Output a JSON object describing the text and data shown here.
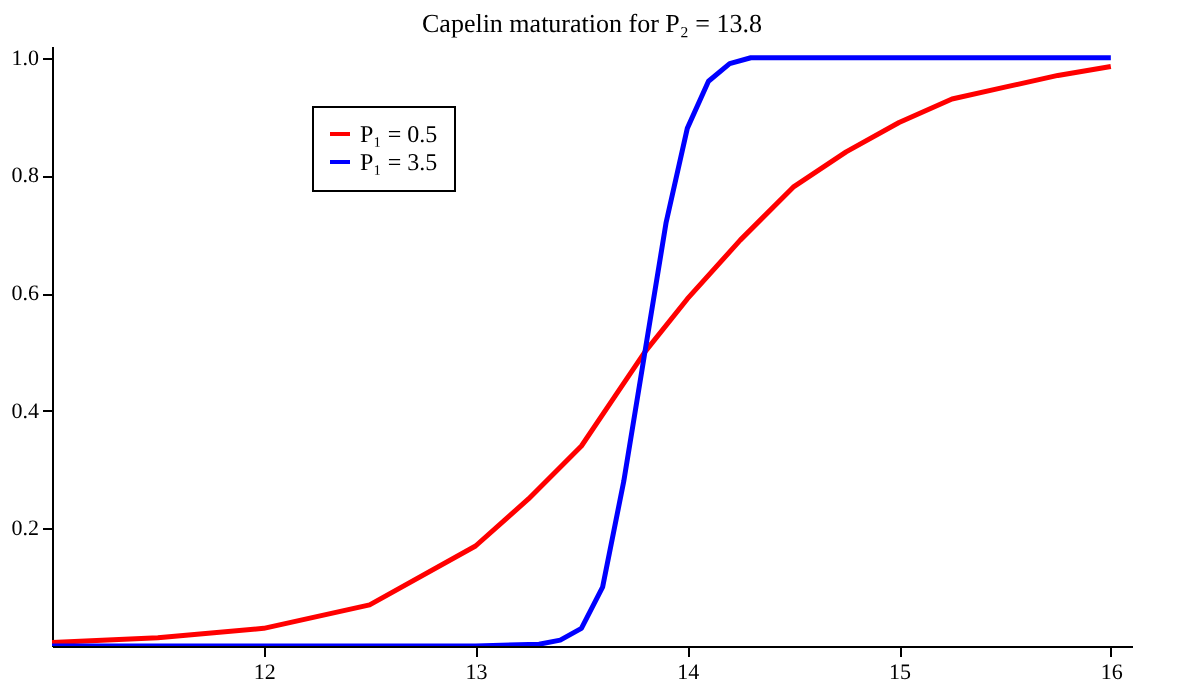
{
  "chart_data": {
    "type": "line",
    "title": "Capelin maturation for P₂ = 13.8",
    "xlim": [
      11,
      16.1
    ],
    "xticks": [
      12,
      13,
      14,
      15,
      16
    ],
    "ylim": [
      0,
      1.02
    ],
    "yticks": [
      {
        "value": 0.2,
        "label": "0.2"
      },
      {
        "value": 0.4,
        "label": "0.4"
      },
      {
        "value": 0.6,
        "label": "0.6"
      },
      {
        "value": 0.8,
        "label": "0.8"
      },
      {
        "value": 1,
        "label": "1.0"
      }
    ],
    "grid": false,
    "legend": "top left",
    "marker": "none",
    "line_style": "solid",
    "series": [
      {
        "name": "P₁ = 0.5",
        "color": "#ff0000",
        "x": [
          11,
          11.5,
          12,
          12.5,
          13,
          13.25,
          13.5,
          13.65,
          13.8,
          14,
          14.25,
          14.5,
          14.75,
          15,
          15.25,
          15.5,
          15.75,
          16
        ],
        "values": [
          0.006,
          0.014,
          0.03,
          0.07,
          0.17,
          0.25,
          0.34,
          0.42,
          0.5,
          0.59,
          0.69,
          0.78,
          0.84,
          0.89,
          0.93,
          0.95,
          0.97,
          0.985
        ]
      },
      {
        "name": "P₁ = 3.5",
        "color": "#0000ff",
        "x": [
          11,
          12,
          13,
          13.3,
          13.4,
          13.5,
          13.6,
          13.7,
          13.8,
          13.9,
          14,
          14.1,
          14.2,
          14.3,
          14.5,
          15,
          16
        ],
        "values": [
          0,
          0,
          0,
          0.003,
          0.01,
          0.03,
          0.1,
          0.28,
          0.5,
          0.72,
          0.88,
          0.96,
          0.99,
          1.0,
          1.0,
          1.0,
          1.0
        ]
      }
    ]
  }
}
